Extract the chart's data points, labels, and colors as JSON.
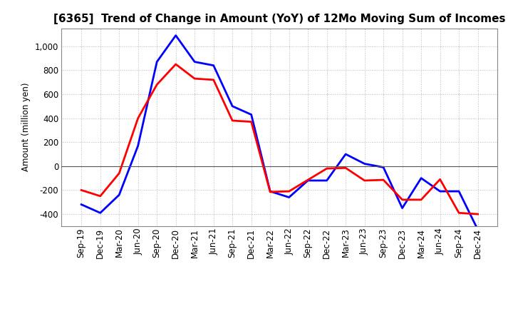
{
  "title": "[6365]  Trend of Change in Amount (YoY) of 12Mo Moving Sum of Incomes",
  "ylabel": "Amount (million yen)",
  "xlabels": [
    "Sep-19",
    "Dec-19",
    "Mar-20",
    "Jun-20",
    "Sep-20",
    "Dec-20",
    "Mar-21",
    "Jun-21",
    "Sep-21",
    "Dec-21",
    "Mar-22",
    "Jun-22",
    "Sep-22",
    "Dec-22",
    "Mar-23",
    "Jun-23",
    "Sep-23",
    "Dec-23",
    "Mar-24",
    "Jun-24",
    "Sep-24",
    "Dec-24"
  ],
  "ordinary_income": [
    -320,
    -390,
    -240,
    170,
    870,
    1090,
    870,
    840,
    500,
    430,
    -210,
    -260,
    -120,
    -120,
    100,
    20,
    -10,
    -350,
    -100,
    -210,
    -210,
    -530
  ],
  "net_income": [
    -200,
    -250,
    -60,
    400,
    680,
    850,
    730,
    720,
    380,
    370,
    -215,
    -210,
    -115,
    -20,
    -15,
    -120,
    -115,
    -280,
    -280,
    -110,
    -390,
    -400
  ],
  "ordinary_color": "#0000ff",
  "net_color": "#ff0000",
  "ylim": [
    -500,
    1150
  ],
  "ytick_vals": [
    -400,
    -200,
    0,
    200,
    400,
    600,
    800,
    1000
  ],
  "bg_color": "#ffffff",
  "plot_bg_color": "#ffffff",
  "grid_color": "#bbbbbb",
  "linewidth": 2.0,
  "legend_fontsize": 10,
  "title_fontsize": 11,
  "ylabel_fontsize": 8.5,
  "tick_fontsize": 8.5
}
